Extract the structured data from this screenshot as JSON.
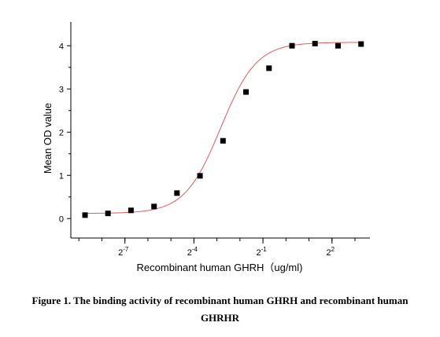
{
  "chart_data": {
    "type": "scatter",
    "title": "",
    "xlabel": "Recombinant human GHRH（ug/ml)",
    "ylabel": "Mean OD value",
    "x_scale": "log2",
    "x_ticks": [
      {
        "base": "2",
        "exp": "-7",
        "value": 0.0078125
      },
      {
        "base": "2",
        "exp": "-4",
        "value": 0.0625
      },
      {
        "base": "2",
        "exp": "-1",
        "value": 0.5
      },
      {
        "base": "2",
        "exp": "2",
        "value": 4
      }
    ],
    "y_ticks": [
      "0",
      "1",
      "2",
      "3",
      "4"
    ],
    "ylim": [
      -0.45,
      4.55
    ],
    "grid": false,
    "legend": "none",
    "series": [
      {
        "marker": "square",
        "color": "#000000",
        "fit_color": "#e8585c",
        "x": [
          0.00235,
          0.00469,
          0.00938,
          0.0188,
          0.0375,
          0.075,
          0.15,
          0.3,
          0.6,
          1.2,
          2.4,
          4.8,
          9.6
        ],
        "y": [
          0.08,
          0.12,
          0.19,
          0.28,
          0.59,
          0.99,
          1.8,
          2.93,
          3.48,
          4.0,
          4.05,
          4.0,
          4.04
        ]
      }
    ],
    "fit": {
      "bottom": 0.12,
      "top": 4.08,
      "ec50": 0.14,
      "hill": 1.85
    }
  },
  "caption": {
    "line1": "Figure 1. The binding activity of recombinant human GHRH and recombinant human",
    "line2": "GHRHR"
  }
}
